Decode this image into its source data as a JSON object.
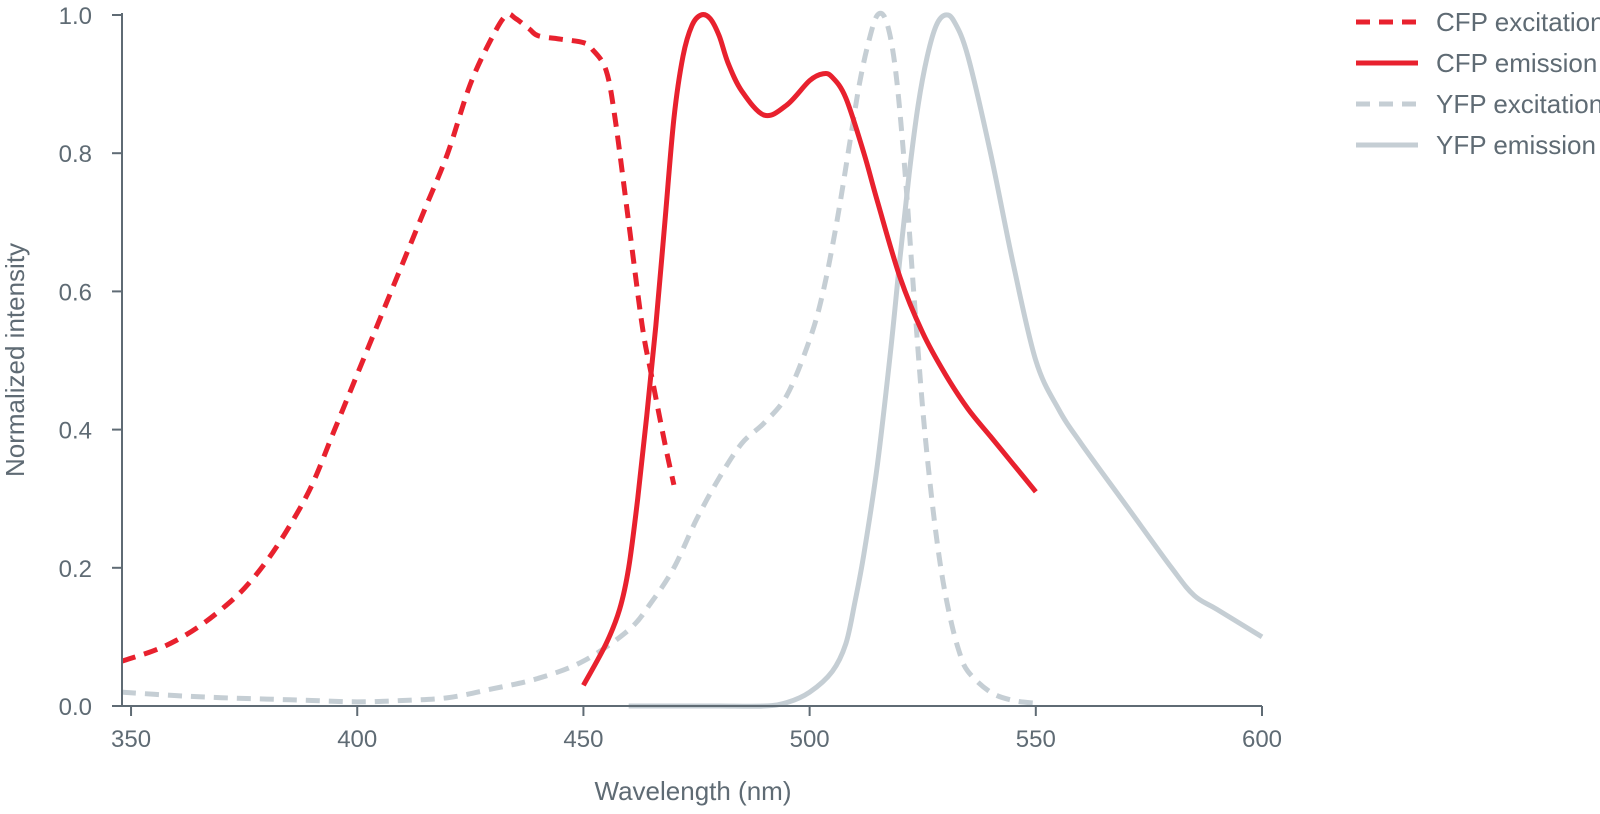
{
  "chart_data": {
    "type": "line",
    "xlabel": "Wavelength (nm)",
    "ylabel": "Normalized intensity",
    "xlim": [
      348,
      600
    ],
    "ylim": [
      0,
      1.0
    ],
    "xticks": [
      350,
      400,
      450,
      500,
      550,
      600
    ],
    "yticks": [
      0.0,
      0.2,
      0.4,
      0.6,
      0.8,
      1.0
    ],
    "ytick_labels": [
      "0.0",
      "0.2",
      "0.4",
      "0.6",
      "0.8",
      "1.0"
    ],
    "grid": false,
    "legend_position": "top-right",
    "series": [
      {
        "name": "CFP excitation",
        "color": "#e8212e",
        "dashed": true,
        "x": [
          348,
          355,
          360,
          365,
          370,
          375,
          380,
          385,
          390,
          395,
          400,
          405,
          410,
          415,
          420,
          425,
          430,
          433,
          435,
          438,
          440,
          445,
          450,
          452,
          455,
          457,
          460,
          463,
          465,
          468,
          470
        ],
        "y": [
          0.065,
          0.08,
          0.095,
          0.115,
          0.14,
          0.17,
          0.21,
          0.26,
          0.32,
          0.4,
          0.48,
          0.56,
          0.64,
          0.72,
          0.8,
          0.9,
          0.97,
          1.0,
          0.995,
          0.98,
          0.97,
          0.965,
          0.96,
          0.95,
          0.92,
          0.85,
          0.7,
          0.55,
          0.48,
          0.38,
          0.32
        ]
      },
      {
        "name": "CFP emission",
        "color": "#e8212e",
        "dashed": false,
        "x": [
          450,
          455,
          458,
          460,
          462,
          464,
          466,
          468,
          470,
          472,
          474,
          476,
          478,
          480,
          482,
          485,
          490,
          495,
          500,
          503,
          505,
          508,
          512,
          515,
          520,
          525,
          530,
          535,
          540,
          545,
          550
        ],
        "y": [
          0.03,
          0.09,
          0.14,
          0.2,
          0.3,
          0.42,
          0.55,
          0.7,
          0.85,
          0.94,
          0.985,
          1.0,
          0.995,
          0.97,
          0.93,
          0.89,
          0.855,
          0.87,
          0.905,
          0.915,
          0.91,
          0.88,
          0.8,
          0.73,
          0.62,
          0.54,
          0.48,
          0.43,
          0.39,
          0.35,
          0.31
        ]
      },
      {
        "name": "YFP excitation",
        "color": "#c5ced4",
        "dashed": true,
        "x": [
          348,
          360,
          370,
          380,
          390,
          400,
          410,
          420,
          430,
          440,
          450,
          460,
          465,
          470,
          475,
          480,
          485,
          490,
          495,
          500,
          503,
          506,
          509,
          511,
          513,
          515,
          517,
          519,
          521,
          523,
          525,
          527,
          529,
          531,
          533,
          535,
          540,
          545,
          550
        ],
        "y": [
          0.02,
          0.015,
          0.012,
          0.01,
          0.008,
          0.006,
          0.008,
          0.012,
          0.025,
          0.04,
          0.065,
          0.11,
          0.15,
          0.2,
          0.27,
          0.33,
          0.38,
          0.41,
          0.45,
          0.53,
          0.6,
          0.7,
          0.82,
          0.9,
          0.96,
          1.0,
          0.99,
          0.92,
          0.78,
          0.6,
          0.43,
          0.3,
          0.2,
          0.13,
          0.08,
          0.05,
          0.02,
          0.008,
          0.004
        ]
      },
      {
        "name": "YFP emission",
        "color": "#c5ced4",
        "dashed": false,
        "x": [
          460,
          470,
          480,
          490,
          495,
          500,
          505,
          508,
          510,
          512,
          515,
          518,
          520,
          522,
          524,
          526,
          528,
          530,
          532,
          535,
          540,
          545,
          550,
          555,
          560,
          570,
          580,
          585,
          590,
          600
        ],
        "y": [
          0.0,
          0.0,
          0.0,
          0.0,
          0.005,
          0.02,
          0.05,
          0.09,
          0.15,
          0.22,
          0.35,
          0.52,
          0.65,
          0.77,
          0.87,
          0.94,
          0.985,
          1.0,
          0.99,
          0.94,
          0.8,
          0.64,
          0.5,
          0.43,
          0.38,
          0.29,
          0.2,
          0.16,
          0.14,
          0.1
        ]
      }
    ]
  }
}
